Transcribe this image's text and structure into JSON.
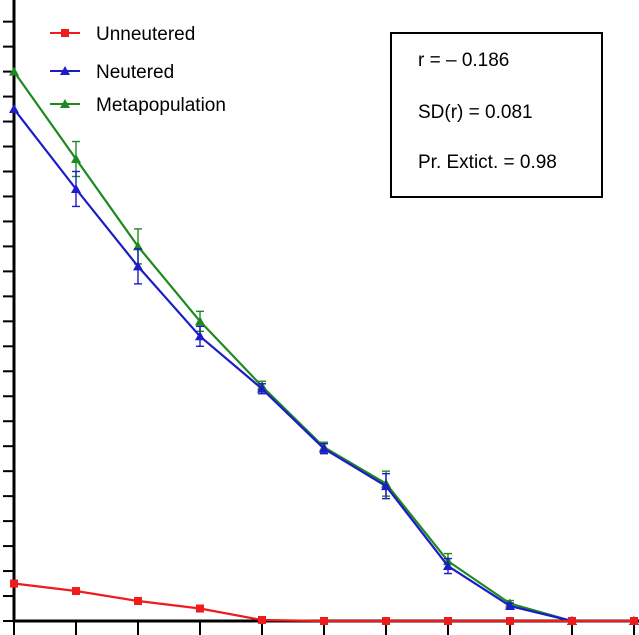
{
  "chart_data": {
    "type": "line",
    "x": [
      0,
      1,
      2,
      3,
      4,
      5,
      6,
      7,
      8,
      9,
      10
    ],
    "ylim": [
      0,
      110
    ],
    "grid": false,
    "legend_position": "top-left",
    "series": [
      {
        "name": "Unneutered",
        "color": "#ee1c1c",
        "marker": "square",
        "values": [
          7.5,
          6,
          4,
          2.5,
          0.2,
          0,
          0,
          0,
          0,
          0,
          0
        ]
      },
      {
        "name": "Neutered",
        "color": "#1c1cc8",
        "marker": "triangle",
        "values": [
          102.5,
          86.5,
          71,
          57,
          46.5,
          34.5,
          27,
          11,
          3,
          0,
          0
        ],
        "errors": [
          0,
          3.5,
          3.5,
          2,
          1,
          1,
          2.5,
          1.5,
          0.6,
          0,
          0
        ]
      },
      {
        "name": "Metapopulation",
        "color": "#1e8a1e",
        "marker": "triangle",
        "values": [
          110,
          92.5,
          75,
          60,
          47,
          34.8,
          27.5,
          12,
          3.5,
          0,
          0
        ],
        "errors": [
          0,
          3.5,
          3.5,
          2,
          1,
          1,
          2.5,
          1.5,
          0.6,
          0,
          0
        ]
      }
    ],
    "annotations": [
      "r =  – 0.186",
      "SD(r) = 0.081",
      "Pr. Extict. = 0.98"
    ]
  }
}
